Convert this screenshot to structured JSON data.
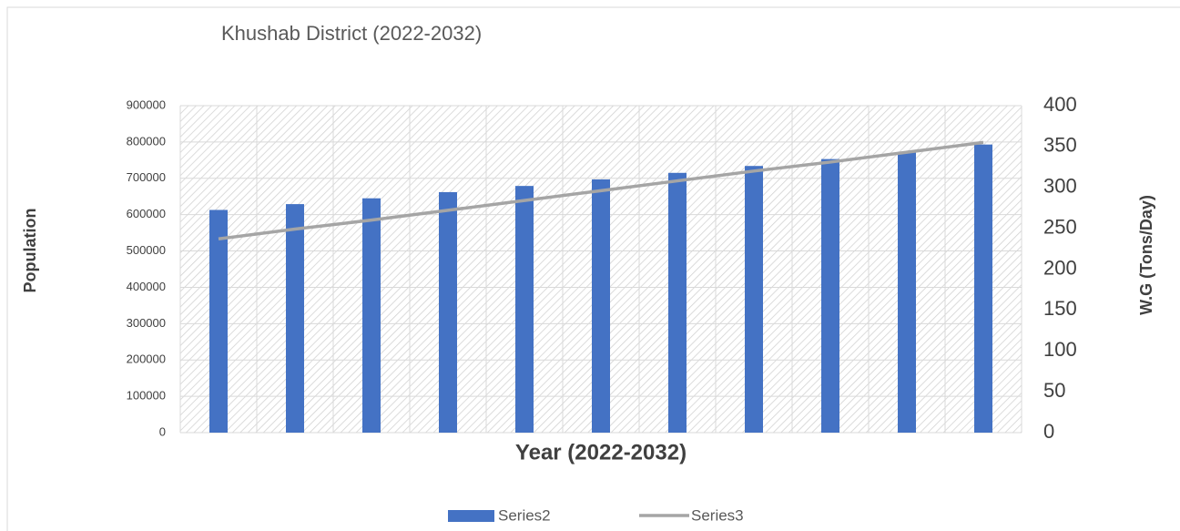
{
  "chart_data": {
    "type": "bar",
    "title": "Khushab District (2022-2032)",
    "x_label": "Year (2022-2032)",
    "y_label": "Population",
    "y2_label": "W.G  (Tons/Day)",
    "categories": [
      null,
      null,
      null,
      null,
      null,
      null,
      null,
      null,
      null,
      null,
      null
    ],
    "series": [
      {
        "name": "Series2",
        "type": "bar",
        "color": "#4472c4",
        "values": [
          613000,
          629000,
          645000,
          662000,
          679000,
          697000,
          715000,
          734000,
          753000,
          773000,
          793000
        ]
      },
      {
        "name": "Series3",
        "type": "line",
        "color": "#a5a5a5",
        "axis": "y2",
        "values": [
          237,
          249,
          260,
          272,
          284,
          296,
          308,
          320,
          331,
          343,
          355
        ]
      }
    ],
    "ylim": [
      0,
      900000
    ],
    "yticks": [
      0,
      100000,
      200000,
      300000,
      400000,
      500000,
      600000,
      700000,
      800000,
      900000
    ],
    "y2lim": [
      0,
      400
    ],
    "y2ticks": [
      0,
      50,
      100,
      150,
      200,
      250,
      300,
      350,
      400
    ],
    "grid": true,
    "legend": "bottom"
  }
}
